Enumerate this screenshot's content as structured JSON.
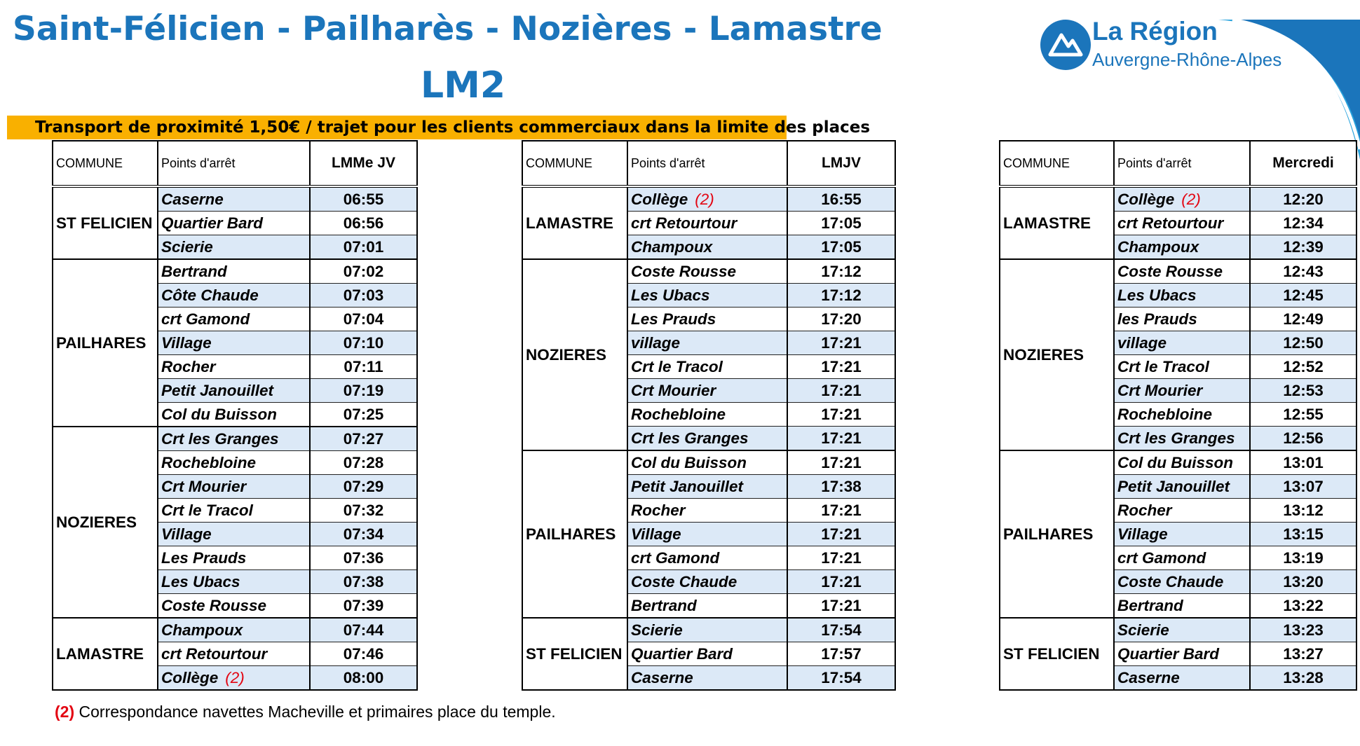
{
  "header": {
    "title": "Saint-Félicien - Pailharès - Nozières - Lamastre",
    "line": "LM2",
    "banner": "Transport de proximité 1,50€ / trajet pour les clients commerciaux dans la limite des places"
  },
  "logo": {
    "line1": "La Région",
    "line2": "Auvergne-Rhône-Alpes",
    "icon": "mountain-logo-icon"
  },
  "colors": {
    "brand_blue": "#1b75bb",
    "banner": "#f9b000",
    "row_shade": "#dce9f7",
    "note_red": "#e30613"
  },
  "tables": [
    {
      "headers": {
        "commune": "COMMUNE",
        "stop": "Points d'arrêt",
        "time": "LMMe JV"
      },
      "rows": [
        {
          "commune": "ST FELICIEN",
          "stop": "Caserne",
          "time": "06:55"
        },
        {
          "commune": "",
          "stop": "Quartier Bard",
          "time": "06:56"
        },
        {
          "commune": "",
          "stop": "Scierie",
          "time": "07:01"
        },
        {
          "commune": "PAILHARES",
          "stop": "Bertrand",
          "time": "07:02"
        },
        {
          "commune": "",
          "stop": "Côte Chaude",
          "time": "07:03"
        },
        {
          "commune": "",
          "stop": "crt Gamond",
          "time": "07:04"
        },
        {
          "commune": "",
          "stop": "Village",
          "time": "07:10"
        },
        {
          "commune": "",
          "stop": "Rocher",
          "time": "07:11"
        },
        {
          "commune": "",
          "stop": "Petit Janouillet",
          "time": "07:19"
        },
        {
          "commune": "",
          "stop": "Col du Buisson",
          "time": "07:25"
        },
        {
          "commune": "NOZIERES",
          "stop": "Crt les Granges",
          "time": "07:27"
        },
        {
          "commune": "",
          "stop": "Rochebloine",
          "time": "07:28"
        },
        {
          "commune": "",
          "stop": "Crt Mourier",
          "time": "07:29"
        },
        {
          "commune": "",
          "stop": "Crt le Tracol",
          "time": "07:32"
        },
        {
          "commune": "",
          "stop": "Village",
          "time": "07:34"
        },
        {
          "commune": "",
          "stop": "Les Prauds",
          "time": "07:36"
        },
        {
          "commune": "",
          "stop": "Les Ubacs",
          "time": "07:38"
        },
        {
          "commune": "",
          "stop": "Coste Rousse",
          "time": "07:39"
        },
        {
          "commune": "LAMASTRE",
          "stop": "Champoux",
          "time": "07:44"
        },
        {
          "commune": "",
          "stop": "crt Retourtour",
          "time": "07:46"
        },
        {
          "commune": "",
          "stop": "Collège",
          "note": "(2)",
          "time": "08:00"
        }
      ]
    },
    {
      "headers": {
        "commune": "COMMUNE",
        "stop": "Points d'arrêt",
        "time": "LMJV"
      },
      "rows": [
        {
          "commune": "LAMASTRE",
          "stop": "Collège",
          "note": "(2)",
          "time": "16:55"
        },
        {
          "commune": "",
          "stop": "crt Retourtour",
          "time": "17:05"
        },
        {
          "commune": "",
          "stop": "Champoux",
          "time": "17:05"
        },
        {
          "commune": "NOZIERES",
          "stop": "Coste Rousse",
          "time": "17:12"
        },
        {
          "commune": "",
          "stop": "Les Ubacs",
          "time": "17:12"
        },
        {
          "commune": "",
          "stop": "Les Prauds",
          "time": "17:20"
        },
        {
          "commune": "",
          "stop": "village",
          "time": "17:21"
        },
        {
          "commune": "",
          "stop": "Crt le Tracol",
          "time": "17:21"
        },
        {
          "commune": "",
          "stop": "Crt Mourier",
          "time": "17:21"
        },
        {
          "commune": "",
          "stop": "Rochebloine",
          "time": "17:21"
        },
        {
          "commune": "",
          "stop": "Crt les Granges",
          "time": "17:21"
        },
        {
          "commune": "PAILHARES",
          "stop": "Col du Buisson",
          "time": "17:21"
        },
        {
          "commune": "",
          "stop": "Petit Janouillet",
          "time": "17:38"
        },
        {
          "commune": "",
          "stop": "Rocher",
          "time": "17:21"
        },
        {
          "commune": "",
          "stop": "Village",
          "time": "17:21"
        },
        {
          "commune": "",
          "stop": "crt Gamond",
          "time": "17:21"
        },
        {
          "commune": "",
          "stop": "Coste Chaude",
          "time": "17:21"
        },
        {
          "commune": "",
          "stop": "Bertrand",
          "time": "17:21"
        },
        {
          "commune": "ST FELICIEN",
          "stop": "Scierie",
          "time": "17:54"
        },
        {
          "commune": "",
          "stop": "Quartier Bard",
          "time": "17:57"
        },
        {
          "commune": "",
          "stop": "Caserne",
          "time": "17:54"
        }
      ]
    },
    {
      "headers": {
        "commune": "COMMUNE",
        "stop": "Points d'arrêt",
        "time": "Mercredi"
      },
      "rows": [
        {
          "commune": "LAMASTRE",
          "stop": "Collège",
          "note": "(2)",
          "time": "12:20"
        },
        {
          "commune": "",
          "stop": "crt Retourtour",
          "time": "12:34"
        },
        {
          "commune": "",
          "stop": "Champoux",
          "time": "12:39"
        },
        {
          "commune": "NOZIERES",
          "stop": "Coste Rousse",
          "time": "12:43"
        },
        {
          "commune": "",
          "stop": "Les Ubacs",
          "time": "12:45"
        },
        {
          "commune": "",
          "stop": "les Prauds",
          "time": "12:49"
        },
        {
          "commune": "",
          "stop": "village",
          "time": "12:50"
        },
        {
          "commune": "",
          "stop": "Crt le Tracol",
          "time": "12:52"
        },
        {
          "commune": "",
          "stop": "Crt Mourier",
          "time": "12:53"
        },
        {
          "commune": "",
          "stop": "Rochebloine",
          "time": "12:55"
        },
        {
          "commune": "",
          "stop": "Crt les Granges",
          "time": "12:56"
        },
        {
          "commune": "PAILHARES",
          "stop": "Col du Buisson",
          "time": "13:01"
        },
        {
          "commune": "",
          "stop": "Petit Janouillet",
          "time": "13:07"
        },
        {
          "commune": "",
          "stop": "Rocher",
          "time": "13:12"
        },
        {
          "commune": "",
          "stop": "Village",
          "time": "13:15"
        },
        {
          "commune": "",
          "stop": "crt Gamond",
          "time": "13:19"
        },
        {
          "commune": "",
          "stop": "Coste Chaude",
          "time": "13:20"
        },
        {
          "commune": "",
          "stop": "Bertrand",
          "time": "13:22"
        },
        {
          "commune": "ST FELICIEN",
          "stop": "Scierie",
          "time": "13:23"
        },
        {
          "commune": "",
          "stop": "Quartier Bard",
          "time": "13:27"
        },
        {
          "commune": "",
          "stop": "Caserne",
          "time": "13:28"
        }
      ]
    }
  ],
  "footnote": {
    "mark": "(2)",
    "text": " Correspondance navettes Macheville et primaires place du temple."
  }
}
